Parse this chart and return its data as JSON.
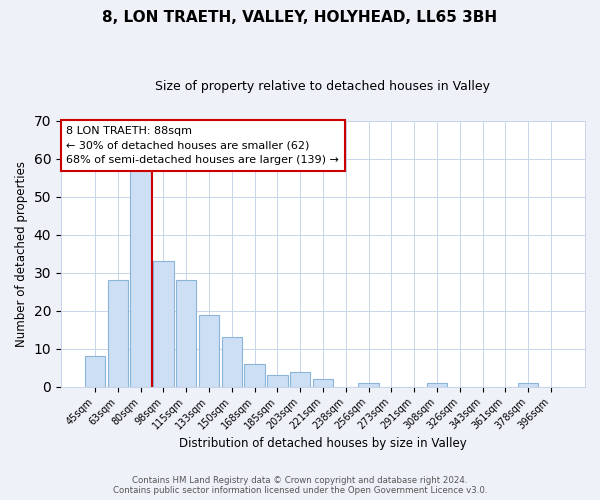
{
  "title": "8, LON TRAETH, VALLEY, HOLYHEAD, LL65 3BH",
  "subtitle": "Size of property relative to detached houses in Valley",
  "xlabel": "Distribution of detached houses by size in Valley",
  "ylabel": "Number of detached properties",
  "categories": [
    "45sqm",
    "63sqm",
    "80sqm",
    "98sqm",
    "115sqm",
    "133sqm",
    "150sqm",
    "168sqm",
    "185sqm",
    "203sqm",
    "221sqm",
    "238sqm",
    "256sqm",
    "273sqm",
    "291sqm",
    "308sqm",
    "326sqm",
    "343sqm",
    "361sqm",
    "378sqm",
    "396sqm"
  ],
  "values": [
    8,
    28,
    57,
    33,
    28,
    19,
    13,
    6,
    3,
    4,
    2,
    0,
    1,
    0,
    0,
    1,
    0,
    0,
    0,
    1,
    0
  ],
  "bar_color": "#ccdff5",
  "bar_edge_color": "#8ab4d8",
  "ref_line_color": "#cc0000",
  "annotation_line1": "8 LON TRAETH: 88sqm",
  "annotation_line2": "← 30% of detached houses are smaller (62)",
  "annotation_line3": "68% of semi-detached houses are larger (139) →",
  "annotation_box_color": "#ffffff",
  "annotation_box_edge_color": "#cc0000",
  "ylim": [
    0,
    70
  ],
  "yticks": [
    0,
    10,
    20,
    30,
    40,
    50,
    60,
    70
  ],
  "footer_line1": "Contains HM Land Registry data © Crown copyright and database right 2024.",
  "footer_line2": "Contains public sector information licensed under the Open Government Licence v3.0.",
  "background_color": "#eef2f8",
  "plot_bg_color": "#ffffff",
  "grid_color": "#c8d4e8"
}
